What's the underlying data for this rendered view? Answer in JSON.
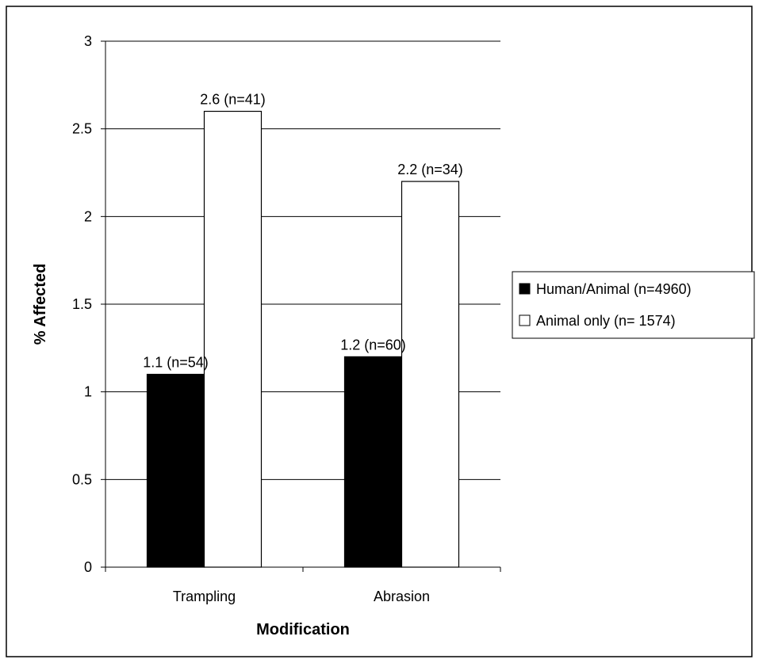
{
  "chart_data": {
    "type": "bar",
    "title": "",
    "xlabel": "Modification",
    "ylabel": "% Affected",
    "categories": [
      "Trampling",
      "Abrasion"
    ],
    "ylim": [
      0,
      3
    ],
    "yticks": [
      0,
      0.5,
      1,
      1.5,
      2,
      2.5,
      3
    ],
    "grid": true,
    "legend_position": "right",
    "series": [
      {
        "name": "Human/Animal (n=4960)",
        "color": "#000000",
        "values": [
          1.1,
          1.2
        ],
        "labels": [
          "1.1 (n=54)",
          "1.2 (n=60)"
        ]
      },
      {
        "name": "Animal only (n= 1574)",
        "color": "#ffffff",
        "values": [
          2.6,
          2.2
        ],
        "labels": [
          "2.6 (n=41)",
          "2.2 (n=34)"
        ]
      }
    ]
  }
}
